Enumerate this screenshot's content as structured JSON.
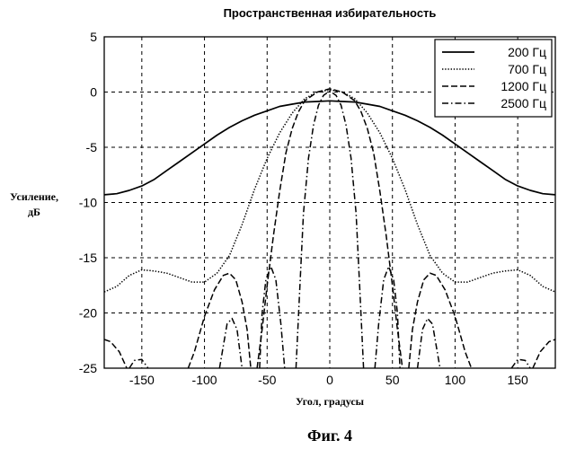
{
  "chart_data": {
    "type": "line",
    "title": "Пространственная избирательность",
    "xlabel": "Угол, градусы",
    "ylabel_line1": "Усиление,",
    "ylabel_line2": "дБ",
    "caption": "Фиг. 4",
    "xlim": [
      -180,
      180
    ],
    "ylim": [
      -25,
      5
    ],
    "xticks": [
      -150,
      -100,
      -50,
      0,
      50,
      100,
      150
    ],
    "yticks": [
      5,
      0,
      -5,
      -10,
      -15,
      -20,
      -25
    ],
    "grid": true,
    "legend_position": "top-right",
    "series": [
      {
        "name": "200 Гц",
        "style": "solid",
        "points": [
          [
            -180,
            -9.3
          ],
          [
            -170,
            -9.2
          ],
          [
            -160,
            -8.9
          ],
          [
            -150,
            -8.5
          ],
          [
            -140,
            -7.9
          ],
          [
            -130,
            -7.1
          ],
          [
            -120,
            -6.3
          ],
          [
            -110,
            -5.5
          ],
          [
            -100,
            -4.7
          ],
          [
            -90,
            -3.9
          ],
          [
            -80,
            -3.2
          ],
          [
            -70,
            -2.6
          ],
          [
            -60,
            -2.1
          ],
          [
            -50,
            -1.7
          ],
          [
            -40,
            -1.3
          ],
          [
            -30,
            -1.1
          ],
          [
            -20,
            -0.9
          ],
          [
            -10,
            -0.85
          ],
          [
            0,
            -0.8
          ],
          [
            10,
            -0.85
          ],
          [
            20,
            -0.9
          ],
          [
            30,
            -1.1
          ],
          [
            40,
            -1.3
          ],
          [
            50,
            -1.7
          ],
          [
            60,
            -2.1
          ],
          [
            70,
            -2.6
          ],
          [
            80,
            -3.2
          ],
          [
            90,
            -3.9
          ],
          [
            100,
            -4.7
          ],
          [
            110,
            -5.5
          ],
          [
            120,
            -6.3
          ],
          [
            130,
            -7.1
          ],
          [
            140,
            -7.9
          ],
          [
            150,
            -8.5
          ],
          [
            160,
            -8.9
          ],
          [
            170,
            -9.2
          ],
          [
            180,
            -9.3
          ]
        ]
      },
      {
        "name": "700 Гц",
        "style": "dotted",
        "points": [
          [
            -180,
            -18.1
          ],
          [
            -170,
            -17.6
          ],
          [
            -160,
            -16.6
          ],
          [
            -150,
            -16.1
          ],
          [
            -140,
            -16.2
          ],
          [
            -130,
            -16.4
          ],
          [
            -120,
            -16.8
          ],
          [
            -110,
            -17.2
          ],
          [
            -100,
            -17.2
          ],
          [
            -90,
            -16.4
          ],
          [
            -80,
            -14.8
          ],
          [
            -70,
            -12.0
          ],
          [
            -60,
            -8.8
          ],
          [
            -50,
            -6.0
          ],
          [
            -40,
            -3.7
          ],
          [
            -30,
            -1.9
          ],
          [
            -20,
            -0.6
          ],
          [
            -10,
            0.0
          ],
          [
            0,
            0.2
          ],
          [
            10,
            0.0
          ],
          [
            20,
            -0.6
          ],
          [
            30,
            -1.9
          ],
          [
            40,
            -3.7
          ],
          [
            50,
            -6.0
          ],
          [
            60,
            -8.8
          ],
          [
            70,
            -12.0
          ],
          [
            80,
            -14.8
          ],
          [
            90,
            -16.4
          ],
          [
            100,
            -17.2
          ],
          [
            110,
            -17.2
          ],
          [
            120,
            -16.8
          ],
          [
            130,
            -16.4
          ],
          [
            140,
            -16.2
          ],
          [
            150,
            -16.1
          ],
          [
            160,
            -16.6
          ],
          [
            170,
            -17.6
          ],
          [
            180,
            -18.1
          ]
        ]
      },
      {
        "name": "1200 Гц",
        "style": "dashed",
        "points": [
          [
            -180,
            -22.4
          ],
          [
            -175,
            -22.6
          ],
          [
            -168,
            -23.5
          ],
          [
            -162,
            -25
          ],
          [
            null,
            null
          ],
          [
            -113,
            -25
          ],
          [
            -108,
            -23.5
          ],
          [
            -100,
            -20.3
          ],
          [
            -92,
            -17.9
          ],
          [
            -85,
            -16.6
          ],
          [
            -80,
            -16.4
          ],
          [
            -75,
            -17.0
          ],
          [
            -70,
            -19.0
          ],
          [
            -66,
            -21.5
          ],
          [
            -63,
            -25
          ],
          [
            null,
            null
          ],
          [
            -58,
            -25
          ],
          [
            -54,
            -21.5
          ],
          [
            -50,
            -17.5
          ],
          [
            -45,
            -13.0
          ],
          [
            -40,
            -9.0
          ],
          [
            -35,
            -5.5
          ],
          [
            -30,
            -3.3
          ],
          [
            -25,
            -1.8
          ],
          [
            -20,
            -0.8
          ],
          [
            -10,
            0.0
          ],
          [
            0,
            0.3
          ],
          [
            10,
            0.0
          ],
          [
            20,
            -0.8
          ],
          [
            25,
            -1.8
          ],
          [
            30,
            -3.3
          ],
          [
            35,
            -5.5
          ],
          [
            40,
            -9.0
          ],
          [
            45,
            -13.0
          ],
          [
            50,
            -17.5
          ],
          [
            54,
            -21.5
          ],
          [
            58,
            -25
          ],
          [
            null,
            null
          ],
          [
            63,
            -25
          ],
          [
            66,
            -21.5
          ],
          [
            70,
            -19.0
          ],
          [
            75,
            -17.0
          ],
          [
            80,
            -16.4
          ],
          [
            85,
            -16.6
          ],
          [
            92,
            -17.9
          ],
          [
            100,
            -20.3
          ],
          [
            108,
            -23.5
          ],
          [
            113,
            -25
          ],
          [
            null,
            null
          ],
          [
            162,
            -25
          ],
          [
            168,
            -23.5
          ],
          [
            175,
            -22.6
          ],
          [
            180,
            -22.4
          ]
        ]
      },
      {
        "name": "2500 Гц",
        "style": "dashdot",
        "points": [
          [
            -160,
            -25
          ],
          [
            -156,
            -24.3
          ],
          [
            -150,
            -24.2
          ],
          [
            -145,
            -25
          ],
          [
            null,
            null
          ],
          [
            -88,
            -25
          ],
          [
            -85,
            -23.0
          ],
          [
            -82,
            -21.0
          ],
          [
            -78,
            -20.5
          ],
          [
            -74,
            -21.5
          ],
          [
            -70,
            -25
          ],
          [
            null,
            null
          ],
          [
            -56,
            -25
          ],
          [
            -54,
            -20.0
          ],
          [
            -51,
            -17.0
          ],
          [
            -47,
            -15.8
          ],
          [
            -43,
            -17.0
          ],
          [
            -39,
            -21.0
          ],
          [
            -36,
            -25
          ],
          [
            null,
            null
          ],
          [
            -27,
            -25
          ],
          [
            -24,
            -18.0
          ],
          [
            -21,
            -11.0
          ],
          [
            -17,
            -6.0
          ],
          [
            -13,
            -3.0
          ],
          [
            -9,
            -1.2
          ],
          [
            -5,
            -0.3
          ],
          [
            0,
            0.1
          ],
          [
            5,
            -0.3
          ],
          [
            9,
            -1.2
          ],
          [
            13,
            -3.0
          ],
          [
            17,
            -6.0
          ],
          [
            21,
            -11.0
          ],
          [
            24,
            -18.0
          ],
          [
            27,
            -25
          ],
          [
            null,
            null
          ],
          [
            36,
            -25
          ],
          [
            39,
            -21.0
          ],
          [
            43,
            -17.0
          ],
          [
            47,
            -15.8
          ],
          [
            51,
            -17.0
          ],
          [
            54,
            -20.0
          ],
          [
            56,
            -25
          ],
          [
            null,
            null
          ],
          [
            70,
            -25
          ],
          [
            74,
            -21.5
          ],
          [
            78,
            -20.5
          ],
          [
            82,
            -21.0
          ],
          [
            85,
            -23.0
          ],
          [
            88,
            -25
          ],
          [
            null,
            null
          ],
          [
            145,
            -25
          ],
          [
            150,
            -24.2
          ],
          [
            156,
            -24.3
          ],
          [
            160,
            -25
          ]
        ]
      }
    ]
  }
}
